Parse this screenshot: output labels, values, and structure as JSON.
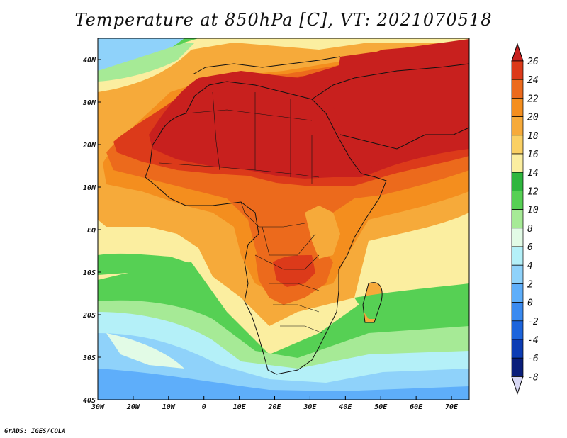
{
  "title": "Temperature at 850hPa [C], VT: 2021070518",
  "credit": "GrADS: IGES/COLA",
  "map": {
    "lon_labels": [
      "30W",
      "20W",
      "10W",
      "0",
      "10E",
      "20E",
      "30E",
      "40E",
      "50E",
      "60E",
      "70E"
    ],
    "lat_labels": [
      "40N",
      "30N",
      "20N",
      "10N",
      "EQ",
      "10S",
      "20S",
      "30S",
      "40S"
    ]
  },
  "colorbar": {
    "levels": [
      "26",
      "24",
      "22",
      "20",
      "18",
      "16",
      "14",
      "12",
      "10",
      "8",
      "6",
      "4",
      "2",
      "0",
      "-2",
      "-4",
      "-6",
      "-8"
    ],
    "colors": {
      "above_26": "#c8201e",
      "24_26": "#dc3a1a",
      "22_24": "#ec6a1c",
      "20_22": "#f48e1e",
      "18_20": "#f6aa3a",
      "16_18": "#fad064",
      "14_16": "#fbeea0",
      "12_14": "#2fb63e",
      "10_12": "#56d054",
      "8_10": "#a6ea96",
      "6_8": "#e2fbe6",
      "4_6": "#b4f0f8",
      "2_4": "#8fd2fa",
      "0_2": "#5eaefa",
      "m2_0": "#3a8af0",
      "m4_m2": "#1c64dc",
      "m6_m4": "#0c3cb4",
      "m8_m6": "#0a1e7a",
      "below_m8": "#d8d8f4"
    }
  }
}
